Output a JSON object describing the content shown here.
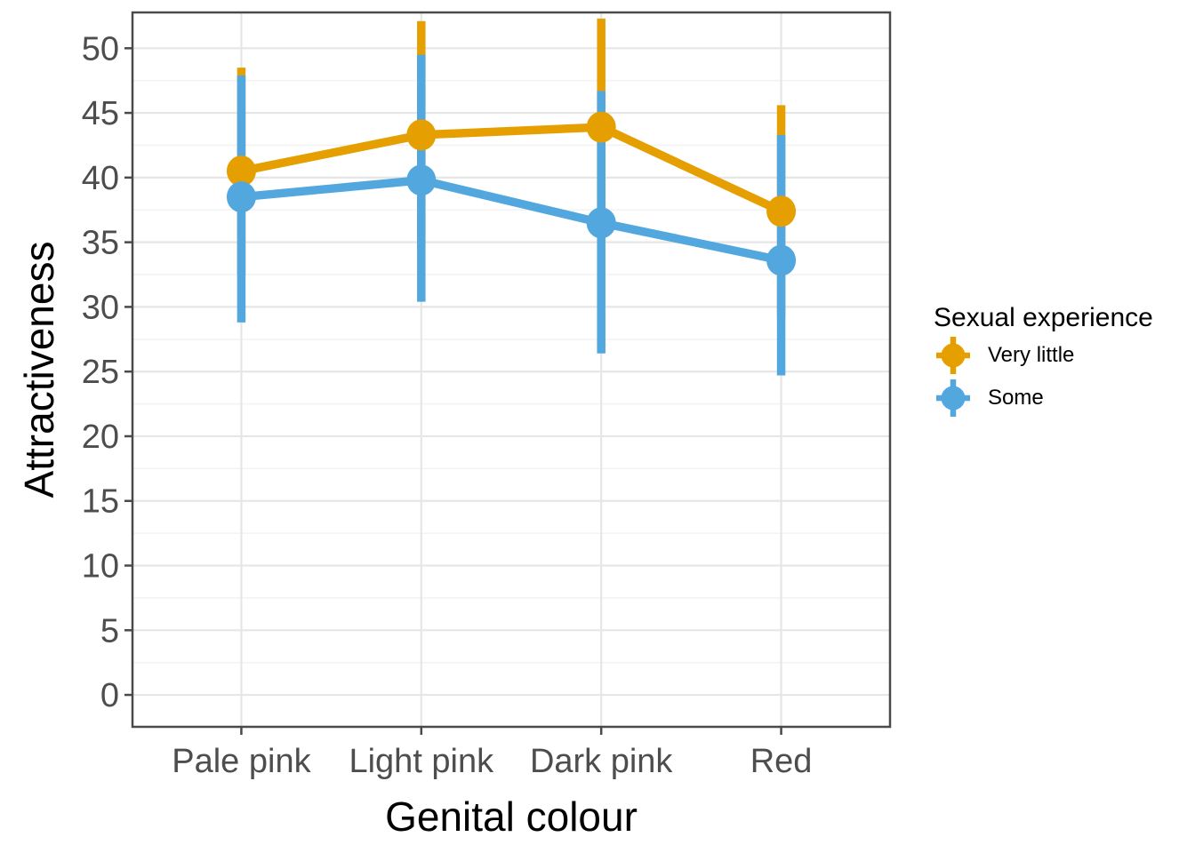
{
  "chart_data": {
    "type": "line",
    "subtype": "pointrange-with-error-bars",
    "title": "",
    "xlabel": "Genital colour",
    "ylabel": "Attractiveness",
    "categories": [
      "Pale pink",
      "Light pink",
      "Dark pink",
      "Red"
    ],
    "y_ticks": [
      0,
      5,
      10,
      15,
      20,
      25,
      30,
      35,
      40,
      45,
      50
    ],
    "ylim": [
      -2.4,
      52.7
    ],
    "grid": {
      "major": true,
      "minor": true,
      "major_color": "#E6E6E6",
      "minor_color": "#F3F3F3"
    },
    "panel": {
      "background": "#FFFFFF",
      "border_color": "#4A4A4A",
      "tick_color": "#4A4A4A",
      "tick_label_color": "#4D4D4D"
    },
    "legend": {
      "title": "Sexual experience",
      "position": "right"
    },
    "series": [
      {
        "name": "Very little",
        "color": "#E69F00",
        "means": [
          40.5,
          43.3,
          43.9,
          37.4
        ],
        "ci_low": [
          32.5,
          34.5,
          35.5,
          29.2
        ],
        "ci_high": [
          48.5,
          52.1,
          52.3,
          45.6
        ]
      },
      {
        "name": "Some",
        "color": "#52A7DF",
        "means": [
          38.5,
          39.8,
          36.5,
          33.6
        ],
        "ci_low": [
          28.8,
          30.4,
          26.4,
          24.7
        ],
        "ci_high": [
          47.9,
          49.5,
          46.7,
          43.3
        ]
      }
    ]
  }
}
